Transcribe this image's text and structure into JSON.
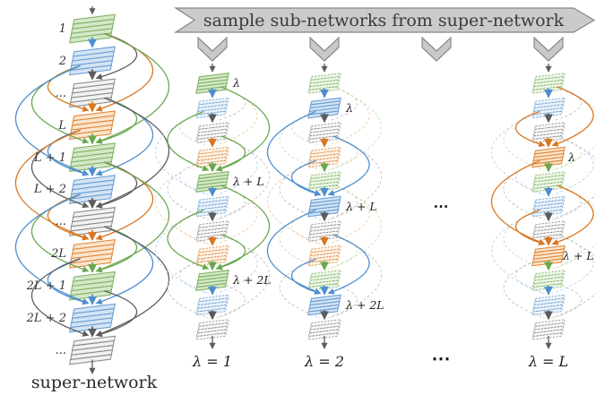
{
  "banner": {
    "label": "sample sub-networks from super-network"
  },
  "colors": {
    "green": {
      "stroke": "#82b366",
      "fill": "#d5e8c9",
      "arc": "#6aa84f",
      "light": "#cfe3b8"
    },
    "blue": {
      "stroke": "#6c9fd4",
      "fill": "#d3e4f5",
      "arc": "#4d8ece",
      "light": "#bcd6ec"
    },
    "gray": {
      "stroke": "#8c8c8c",
      "fill": "#f2f2f2",
      "arc": "#5c5c5c",
      "light": "#c6c6c6"
    },
    "orange": {
      "stroke": "#e0883e",
      "fill": "#fbe4cb",
      "arc": "#d9751e",
      "light": "#f2d1ab"
    }
  },
  "super_network": {
    "title": "super-network",
    "block_colors": [
      "green",
      "blue",
      "gray",
      "orange",
      "green",
      "blue",
      "gray",
      "orange",
      "green",
      "blue",
      "gray"
    ],
    "side_labels": [
      "1",
      "2",
      "...",
      "L",
      "L + 1",
      "L + 2",
      "...",
      "2L",
      "2L + 1",
      "2L + 2",
      "..."
    ]
  },
  "sub_networks": [
    {
      "bottom_label": "λ = 1",
      "active": "green",
      "labels": {
        "b0": "λ",
        "b4": "λ + L",
        "b8": "λ + 2L"
      }
    },
    {
      "bottom_label": "λ = 2",
      "active": "blue",
      "labels": {
        "b1": "λ",
        "b5": "λ + L",
        "b9": "λ + 2L"
      }
    },
    {
      "bottom_label": "λ = L",
      "active": "orange",
      "labels": {
        "b3": "λ",
        "b7": "λ + L"
      }
    }
  ],
  "ellipsis": {
    "middle": "⋯",
    "bottom": "⋯"
  }
}
